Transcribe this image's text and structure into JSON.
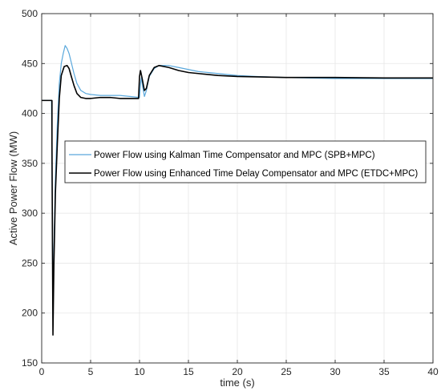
{
  "chart_data": {
    "type": "line",
    "xlabel": "time (s)",
    "ylabel": "Active Power Flow (MW)",
    "xlim": [
      0,
      40
    ],
    "ylim": [
      150,
      500
    ],
    "xticks": [
      0,
      5,
      10,
      15,
      20,
      25,
      30,
      35,
      40
    ],
    "yticks": [
      150,
      200,
      250,
      300,
      350,
      400,
      450,
      500
    ],
    "grid": true,
    "legend_position": "middle-right",
    "series": [
      {
        "name": "Power Flow using Kalman Time Compensator and MPC (SPB+MPC)",
        "color": "#5aa8dc",
        "points": [
          [
            0,
            413
          ],
          [
            1.0,
            413
          ],
          [
            1.05,
            360
          ],
          [
            1.1,
            270
          ],
          [
            1.15,
            195
          ],
          [
            1.25,
            265
          ],
          [
            1.4,
            335
          ],
          [
            1.6,
            390
          ],
          [
            1.8,
            430
          ],
          [
            2.0,
            450
          ],
          [
            2.2,
            460
          ],
          [
            2.4,
            468
          ],
          [
            2.6,
            465
          ],
          [
            2.8,
            460
          ],
          [
            3.0,
            452
          ],
          [
            3.3,
            440
          ],
          [
            3.6,
            430
          ],
          [
            4.0,
            423
          ],
          [
            4.5,
            420
          ],
          [
            5.0,
            419
          ],
          [
            6.0,
            418
          ],
          [
            7.0,
            418
          ],
          [
            8.0,
            418
          ],
          [
            9.0,
            417
          ],
          [
            10.0,
            416
          ],
          [
            10.1,
            430
          ],
          [
            10.2,
            436
          ],
          [
            10.3,
            428
          ],
          [
            10.5,
            417
          ],
          [
            10.7,
            423
          ],
          [
            11.0,
            437
          ],
          [
            11.5,
            445
          ],
          [
            12.0,
            448
          ],
          [
            13.0,
            448
          ],
          [
            14.0,
            446
          ],
          [
            15.0,
            444
          ],
          [
            16.0,
            442
          ],
          [
            17.0,
            441
          ],
          [
            18.0,
            440
          ],
          [
            20.0,
            438
          ],
          [
            22.0,
            437
          ],
          [
            25.0,
            436
          ],
          [
            30.0,
            435
          ],
          [
            35.0,
            435
          ],
          [
            40.0,
            435
          ]
        ]
      },
      {
        "name": "Power Flow using Enhanced Time Delay Compensator and MPC (ETDC+MPC)",
        "color": "#000000",
        "points": [
          [
            0,
            413
          ],
          [
            1.05,
            413
          ],
          [
            1.05,
            370
          ],
          [
            1.1,
            270
          ],
          [
            1.15,
            178
          ],
          [
            1.25,
            250
          ],
          [
            1.4,
            320
          ],
          [
            1.6,
            370
          ],
          [
            1.8,
            415
          ],
          [
            2.0,
            438
          ],
          [
            2.3,
            447
          ],
          [
            2.6,
            448
          ],
          [
            2.8,
            445
          ],
          [
            3.0,
            438
          ],
          [
            3.3,
            428
          ],
          [
            3.6,
            420
          ],
          [
            4.0,
            416
          ],
          [
            4.5,
            415
          ],
          [
            5.0,
            415
          ],
          [
            6.0,
            416
          ],
          [
            7.0,
            416
          ],
          [
            8.0,
            415
          ],
          [
            9.0,
            415
          ],
          [
            9.9,
            415
          ],
          [
            10.0,
            437
          ],
          [
            10.1,
            443
          ],
          [
            10.25,
            436
          ],
          [
            10.5,
            423
          ],
          [
            10.7,
            425
          ],
          [
            11.0,
            438
          ],
          [
            11.5,
            446
          ],
          [
            12.0,
            448
          ],
          [
            13.0,
            446
          ],
          [
            14.0,
            443
          ],
          [
            15.0,
            441
          ],
          [
            16.0,
            440
          ],
          [
            18.0,
            438
          ],
          [
            20.0,
            437
          ],
          [
            25.0,
            436
          ],
          [
            30.0,
            436
          ],
          [
            35.0,
            435.5
          ],
          [
            40.0,
            435.5
          ]
        ]
      }
    ]
  }
}
